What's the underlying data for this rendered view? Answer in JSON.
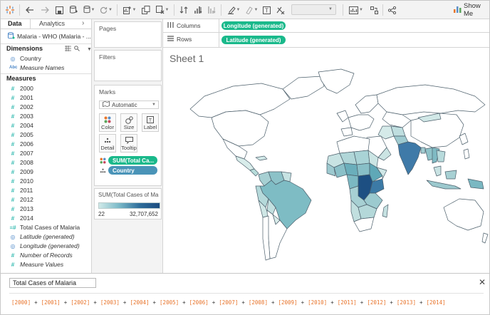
{
  "toolbar": {
    "show_me_label": "Show Me"
  },
  "datapane": {
    "tab_data": "Data",
    "tab_analytics": "Analytics",
    "data_source": "Malaria - WHO (Malaria - ...",
    "dimensions_heading": "Dimensions",
    "dimensions": [
      {
        "label": "Country",
        "icon": "globe-icon",
        "italic": false
      },
      {
        "label": "Measure Names",
        "icon": "abc-icon",
        "italic": true
      }
    ],
    "measures_heading": "Measures",
    "measures": [
      {
        "label": "2000",
        "icon": "hash-icon",
        "italic": false
      },
      {
        "label": "2001",
        "icon": "hash-icon",
        "italic": false
      },
      {
        "label": "2002",
        "icon": "hash-icon",
        "italic": false
      },
      {
        "label": "2003",
        "icon": "hash-icon",
        "italic": false
      },
      {
        "label": "2004",
        "icon": "hash-icon",
        "italic": false
      },
      {
        "label": "2005",
        "icon": "hash-icon",
        "italic": false
      },
      {
        "label": "2006",
        "icon": "hash-icon",
        "italic": false
      },
      {
        "label": "2007",
        "icon": "hash-icon",
        "italic": false
      },
      {
        "label": "2008",
        "icon": "hash-icon",
        "italic": false
      },
      {
        "label": "2009",
        "icon": "hash-icon",
        "italic": false
      },
      {
        "label": "2010",
        "icon": "hash-icon",
        "italic": false
      },
      {
        "label": "2011",
        "icon": "hash-icon",
        "italic": false
      },
      {
        "label": "2012",
        "icon": "hash-icon",
        "italic": false
      },
      {
        "label": "2013",
        "icon": "hash-icon",
        "italic": false
      },
      {
        "label": "2014",
        "icon": "hash-icon",
        "italic": false
      },
      {
        "label": "Total Cases of Malaria",
        "icon": "calc-hash-icon",
        "italic": false
      },
      {
        "label": "Latitude (generated)",
        "icon": "globe-icon",
        "italic": true
      },
      {
        "label": "Longitude (generated)",
        "icon": "globe-icon",
        "italic": true
      },
      {
        "label": "Number of Records",
        "icon": "hash-icon",
        "italic": true
      },
      {
        "label": "Measure Values",
        "icon": "hash-icon",
        "italic": true
      }
    ]
  },
  "cards": {
    "pages_title": "Pages",
    "filters_title": "Filters",
    "marks_title": "Marks",
    "mark_type": "Automatic",
    "color_label": "Color",
    "size_label": "Size",
    "label_label": "Label",
    "detail_label": "Detail",
    "tooltip_label": "Tooltip",
    "pill_color": "SUM(Total Ca...",
    "pill_detail": "Country",
    "legend_title": "SUM(Total Cases of Ma...",
    "legend_min": "22",
    "legend_max": "32,707,652",
    "legend_colors": [
      "#cfe9e8",
      "#1c4c80"
    ]
  },
  "shelves": {
    "columns_label": "Columns",
    "columns_pill": "Longitude (generated)",
    "rows_label": "Rows",
    "rows_pill": "Latitude (generated)"
  },
  "view": {
    "sheet_title": "Sheet 1"
  },
  "calc": {
    "name": "Total Cases of Malaria",
    "formula_fields": [
      "[2000]",
      "[2001]",
      "[2002]",
      "[2003]",
      "[2004]",
      "[2005]",
      "[2006]",
      "[2007]",
      "[2008]",
      "[2009]",
      "[2010]",
      "[2011]",
      "[2012]",
      "[2013]",
      "[2014]"
    ],
    "operator": "+"
  },
  "colors": {
    "pill_green": "#1ab98b",
    "pill_blue": "#4a94b8",
    "formula_field": "#e8732a"
  }
}
